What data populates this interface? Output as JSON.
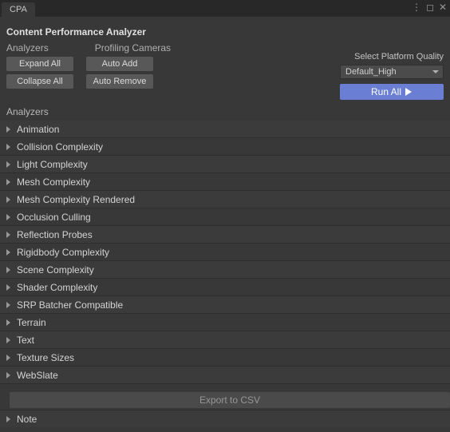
{
  "colors": {
    "background": "#383838",
    "tabbar": "#282828",
    "row_odd": "#3b3b3b",
    "row_even": "#383838",
    "button": "#585858",
    "run_button": "#6a7fd3",
    "dropdown": "#4b4b4b",
    "text": "#c4c4c4",
    "disabled_text": "#969696"
  },
  "tab": {
    "label": "CPA"
  },
  "title": "Content Performance Analyzer",
  "columns": {
    "analyzers": "Analyzers",
    "profiling_cameras": "Profiling Cameras"
  },
  "buttons": {
    "expand_all": "Expand All",
    "collapse_all": "Collapse All",
    "auto_add": "Auto Add",
    "auto_remove": "Auto Remove",
    "run_all": "Run All",
    "export_csv": "Export to CSV"
  },
  "platform": {
    "label": "Select Platform Quality",
    "selected": "Default_High"
  },
  "section_label": "Analyzers",
  "analyzers": [
    "Animation",
    "Collision Complexity",
    "Light Complexity",
    "Mesh Complexity",
    "Mesh Complexity Rendered",
    "Occlusion Culling",
    "Reflection Probes",
    "Rigidbody Complexity",
    "Scene Complexity",
    "Shader Complexity",
    "SRP Batcher Compatible",
    "Terrain",
    "Text",
    "Texture Sizes",
    "WebSlate"
  ],
  "note_label": "Note"
}
